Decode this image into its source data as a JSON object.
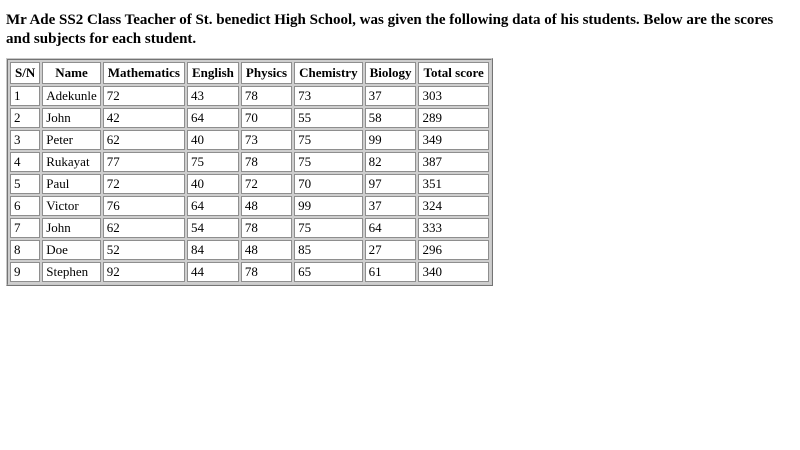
{
  "page": {
    "heading": "Mr Ade SS2 Class Teacher of St. benedict High School, was given the following data of his students. Below are the scores and subjects for each student.",
    "background_color": "#ffffff",
    "text_color": "#000000"
  },
  "table": {
    "columns": [
      "S/N",
      "Name",
      "Mathematics",
      "English",
      "Physics",
      "Chemistry",
      "Biology",
      "Total score"
    ],
    "rows": [
      [
        "1",
        "Adekunle",
        "72",
        "43",
        "78",
        "73",
        "37",
        "303"
      ],
      [
        "2",
        "John",
        "42",
        "64",
        "70",
        "55",
        "58",
        "289"
      ],
      [
        "3",
        "Peter",
        "62",
        "40",
        "73",
        "75",
        "99",
        "349"
      ],
      [
        "4",
        "Rukayat",
        "77",
        "75",
        "78",
        "75",
        "82",
        "387"
      ],
      [
        "5",
        "Paul",
        "72",
        "40",
        "72",
        "70",
        "97",
        "351"
      ],
      [
        "6",
        "Victor",
        "76",
        "64",
        "48",
        "99",
        "37",
        "324"
      ],
      [
        "7",
        "John",
        "62",
        "54",
        "78",
        "75",
        "64",
        "333"
      ],
      [
        "8",
        "Doe",
        "52",
        "84",
        "48",
        "85",
        "27",
        "296"
      ],
      [
        "9",
        "Stephen",
        "92",
        "44",
        "78",
        "65",
        "61",
        "340"
      ]
    ],
    "border_gray": "#8e8e8e",
    "spacing_gray": "#cecece",
    "cell_background": "#ffffff"
  }
}
